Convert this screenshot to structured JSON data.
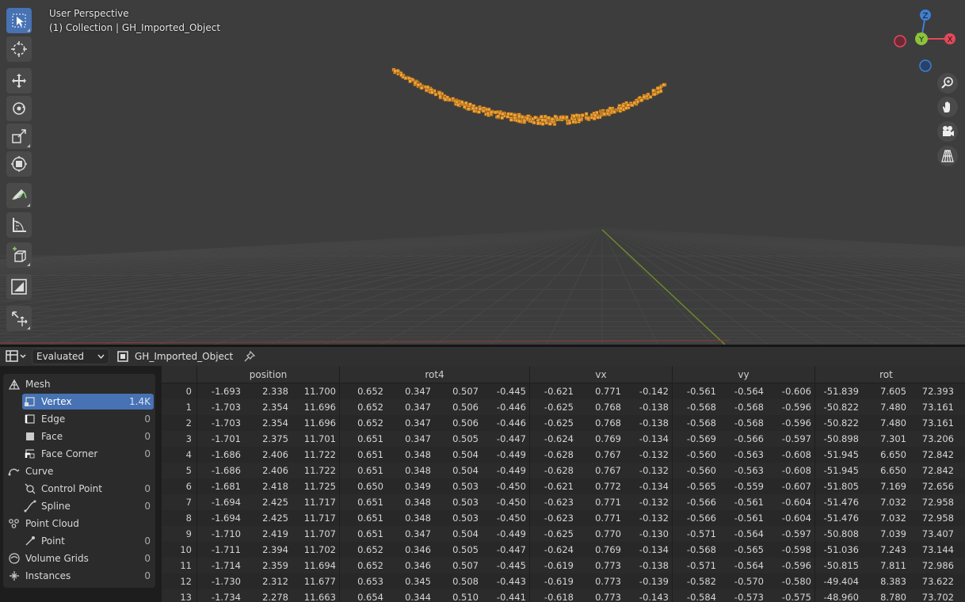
{
  "viewport": {
    "title": "User Perspective",
    "subtitle": "(1) Collection | GH_Imported_Object",
    "tools": [
      "select-box",
      "cursor",
      "move",
      "rotate",
      "scale",
      "transform",
      "annotate",
      "measure",
      "add-cube",
      "shrink-fatten",
      "shear"
    ],
    "gizmo": {
      "z_label": "Z",
      "y_label": "Y",
      "x_label": "X"
    },
    "colors": {
      "x_axis": "#e5485a",
      "y_axis": "#8bc43a",
      "z_axis": "#3f7fd4",
      "points": "#f3a33a",
      "active": "#4772b3"
    }
  },
  "spreadsheet": {
    "eval_mode": "Evaluated",
    "object_name": "GH_Imported_Object",
    "tree": [
      {
        "label": "Mesh",
        "icon": "mesh-icon",
        "level": 0,
        "count": ""
      },
      {
        "label": "Vertex",
        "icon": "vertex-icon",
        "level": 1,
        "count": "1.4K",
        "active": true
      },
      {
        "label": "Edge",
        "icon": "edge-icon",
        "level": 1,
        "count": "0"
      },
      {
        "label": "Face",
        "icon": "face-icon",
        "level": 1,
        "count": "0"
      },
      {
        "label": "Face Corner",
        "icon": "face-corner-icon",
        "level": 1,
        "count": "0"
      },
      {
        "label": "Curve",
        "icon": "curve-icon",
        "level": 0,
        "count": ""
      },
      {
        "label": "Control Point",
        "icon": "control-point-icon",
        "level": 1,
        "count": "0"
      },
      {
        "label": "Spline",
        "icon": "spline-icon",
        "level": 1,
        "count": "0"
      },
      {
        "label": "Point Cloud",
        "icon": "point-cloud-icon",
        "level": 0,
        "count": ""
      },
      {
        "label": "Point",
        "icon": "point-icon",
        "level": 1,
        "count": "0"
      },
      {
        "label": "Volume Grids",
        "icon": "volume-icon",
        "level": 0,
        "count": "0"
      },
      {
        "label": "Instances",
        "icon": "instances-icon",
        "level": 0,
        "count": "0"
      }
    ],
    "columns": [
      {
        "name": "position",
        "n": 3
      },
      {
        "name": "rot4",
        "n": 4
      },
      {
        "name": "vx",
        "n": 3
      },
      {
        "name": "vy",
        "n": 3
      },
      {
        "name": "rot",
        "n": 3
      }
    ],
    "rows": [
      [
        "0",
        "-1.693",
        "2.338",
        "11.700",
        "0.652",
        "0.347",
        "0.507",
        "-0.445",
        "-0.621",
        "0.771",
        "-0.142",
        "-0.561",
        "-0.564",
        "-0.606",
        "-51.839",
        "7.605",
        "72.393"
      ],
      [
        "1",
        "-1.703",
        "2.354",
        "11.696",
        "0.652",
        "0.347",
        "0.506",
        "-0.446",
        "-0.625",
        "0.768",
        "-0.138",
        "-0.568",
        "-0.568",
        "-0.596",
        "-50.822",
        "7.480",
        "73.161"
      ],
      [
        "2",
        "-1.703",
        "2.354",
        "11.696",
        "0.652",
        "0.347",
        "0.506",
        "-0.446",
        "-0.625",
        "0.768",
        "-0.138",
        "-0.568",
        "-0.568",
        "-0.596",
        "-50.822",
        "7.480",
        "73.161"
      ],
      [
        "3",
        "-1.701",
        "2.375",
        "11.701",
        "0.651",
        "0.347",
        "0.505",
        "-0.447",
        "-0.624",
        "0.769",
        "-0.134",
        "-0.569",
        "-0.566",
        "-0.597",
        "-50.898",
        "7.301",
        "73.206"
      ],
      [
        "4",
        "-1.686",
        "2.406",
        "11.722",
        "0.651",
        "0.348",
        "0.504",
        "-0.449",
        "-0.628",
        "0.767",
        "-0.132",
        "-0.560",
        "-0.563",
        "-0.608",
        "-51.945",
        "6.650",
        "72.842"
      ],
      [
        "5",
        "-1.686",
        "2.406",
        "11.722",
        "0.651",
        "0.348",
        "0.504",
        "-0.449",
        "-0.628",
        "0.767",
        "-0.132",
        "-0.560",
        "-0.563",
        "-0.608",
        "-51.945",
        "6.650",
        "72.842"
      ],
      [
        "6",
        "-1.681",
        "2.418",
        "11.725",
        "0.650",
        "0.349",
        "0.503",
        "-0.450",
        "-0.621",
        "0.772",
        "-0.134",
        "-0.565",
        "-0.559",
        "-0.607",
        "-51.805",
        "7.169",
        "72.656"
      ],
      [
        "7",
        "-1.694",
        "2.425",
        "11.717",
        "0.651",
        "0.348",
        "0.503",
        "-0.450",
        "-0.623",
        "0.771",
        "-0.132",
        "-0.566",
        "-0.561",
        "-0.604",
        "-51.476",
        "7.032",
        "72.958"
      ],
      [
        "8",
        "-1.694",
        "2.425",
        "11.717",
        "0.651",
        "0.348",
        "0.503",
        "-0.450",
        "-0.623",
        "0.771",
        "-0.132",
        "-0.566",
        "-0.561",
        "-0.604",
        "-51.476",
        "7.032",
        "72.958"
      ],
      [
        "9",
        "-1.710",
        "2.419",
        "11.707",
        "0.651",
        "0.347",
        "0.504",
        "-0.449",
        "-0.625",
        "0.770",
        "-0.130",
        "-0.571",
        "-0.564",
        "-0.597",
        "-50.808",
        "7.039",
        "73.407"
      ],
      [
        "10",
        "-1.711",
        "2.394",
        "11.702",
        "0.652",
        "0.346",
        "0.505",
        "-0.447",
        "-0.624",
        "0.769",
        "-0.134",
        "-0.568",
        "-0.565",
        "-0.598",
        "-51.036",
        "7.243",
        "73.144"
      ],
      [
        "11",
        "-1.714",
        "2.359",
        "11.694",
        "0.652",
        "0.346",
        "0.507",
        "-0.445",
        "-0.619",
        "0.773",
        "-0.138",
        "-0.571",
        "-0.564",
        "-0.596",
        "-50.815",
        "7.811",
        "72.986"
      ],
      [
        "12",
        "-1.730",
        "2.312",
        "11.677",
        "0.653",
        "0.345",
        "0.508",
        "-0.443",
        "-0.619",
        "0.773",
        "-0.139",
        "-0.582",
        "-0.570",
        "-0.580",
        "-49.404",
        "8.383",
        "73.622"
      ],
      [
        "13",
        "-1.734",
        "2.278",
        "11.663",
        "0.654",
        "0.344",
        "0.510",
        "-0.441",
        "-0.618",
        "0.773",
        "-0.143",
        "-0.584",
        "-0.573",
        "-0.575",
        "-48.960",
        "8.780",
        "73.702"
      ]
    ]
  }
}
